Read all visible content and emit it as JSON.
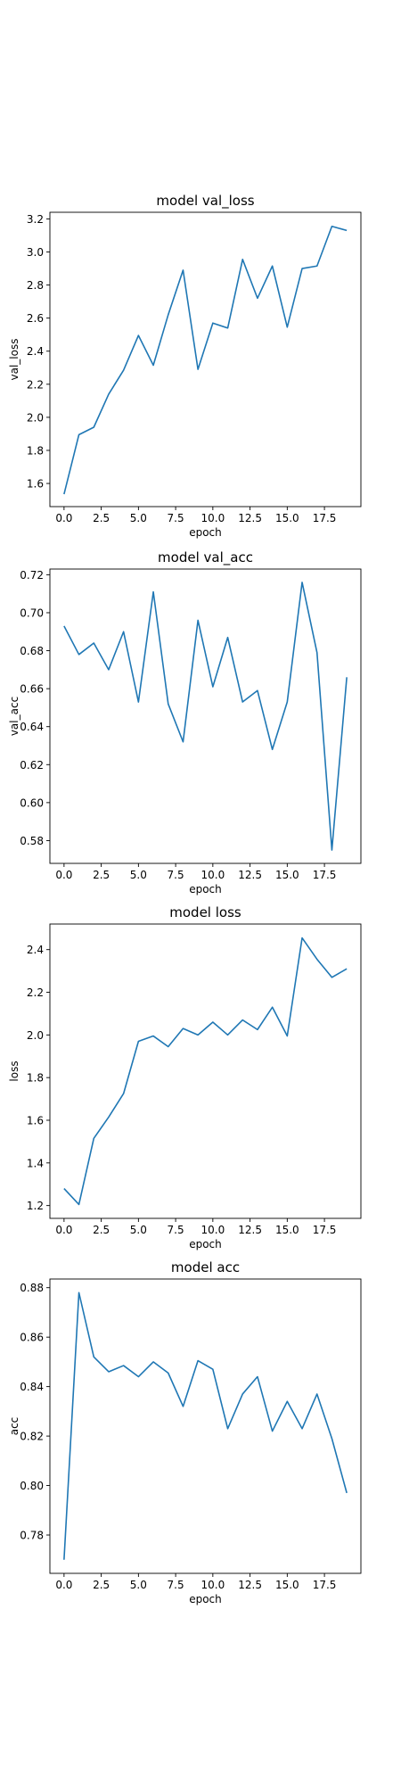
{
  "chart_data": [
    {
      "type": "line",
      "title": "model val_loss",
      "xlabel": "epoch",
      "ylabel": "val_loss",
      "xlim": [
        -0.95,
        19.95
      ],
      "ylim": [
        1.46,
        3.24
      ],
      "xticks": [
        "0.0",
        "2.5",
        "5.0",
        "7.5",
        "10.0",
        "12.5",
        "15.0",
        "17.5"
      ],
      "yticks": [
        "1.6",
        "1.8",
        "2.0",
        "2.2",
        "2.4",
        "2.6",
        "2.8",
        "3.0",
        "3.2"
      ],
      "grid": false,
      "series": [
        {
          "color": "#1f77b4",
          "x": [
            0,
            1,
            2,
            3,
            4,
            5,
            6,
            7,
            8,
            9,
            10,
            11,
            12,
            13,
            14,
            15,
            16,
            17,
            18,
            19
          ],
          "y": [
            1.535,
            1.895,
            1.94,
            2.14,
            2.285,
            2.495,
            2.315,
            2.62,
            2.89,
            2.29,
            2.57,
            2.54,
            2.955,
            2.72,
            2.915,
            2.545,
            2.9,
            2.915,
            3.155,
            3.13
          ]
        }
      ]
    },
    {
      "type": "line",
      "title": "model val_acc",
      "xlabel": "epoch",
      "ylabel": "val_acc",
      "xlim": [
        -0.95,
        19.95
      ],
      "ylim": [
        0.568,
        0.723
      ],
      "xticks": [
        "0.0",
        "2.5",
        "5.0",
        "7.5",
        "10.0",
        "12.5",
        "15.0",
        "17.5"
      ],
      "yticks": [
        "0.58",
        "0.60",
        "0.62",
        "0.64",
        "0.66",
        "0.68",
        "0.70",
        "0.72"
      ],
      "grid": false,
      "series": [
        {
          "color": "#1f77b4",
          "x": [
            0,
            1,
            2,
            3,
            4,
            5,
            6,
            7,
            8,
            9,
            10,
            11,
            12,
            13,
            14,
            15,
            16,
            17,
            18,
            19
          ],
          "y": [
            0.693,
            0.678,
            0.684,
            0.67,
            0.69,
            0.653,
            0.711,
            0.652,
            0.632,
            0.696,
            0.661,
            0.687,
            0.653,
            0.659,
            0.628,
            0.653,
            0.716,
            0.679,
            0.575,
            0.666
          ]
        }
      ]
    },
    {
      "type": "line",
      "title": "model loss",
      "xlabel": "epoch",
      "ylabel": "loss",
      "xlim": [
        -0.95,
        19.95
      ],
      "ylim": [
        1.14,
        2.52
      ],
      "xticks": [
        "0.0",
        "2.5",
        "5.0",
        "7.5",
        "10.0",
        "12.5",
        "15.0",
        "17.5"
      ],
      "yticks": [
        "1.2",
        "1.4",
        "1.6",
        "1.8",
        "2.0",
        "2.2",
        "2.4"
      ],
      "grid": false,
      "series": [
        {
          "color": "#1f77b4",
          "x": [
            0,
            1,
            2,
            3,
            4,
            5,
            6,
            7,
            8,
            9,
            10,
            11,
            12,
            13,
            14,
            15,
            16,
            17,
            18,
            19
          ],
          "y": [
            1.28,
            1.205,
            1.515,
            1.615,
            1.725,
            1.97,
            1.995,
            1.945,
            2.03,
            2.0,
            2.06,
            2.0,
            2.07,
            2.025,
            2.13,
            1.995,
            2.455,
            2.355,
            2.27,
            2.31
          ]
        }
      ]
    },
    {
      "type": "line",
      "title": "model acc",
      "xlabel": "epoch",
      "ylabel": "acc",
      "xlim": [
        -0.95,
        19.95
      ],
      "ylim": [
        0.7645,
        0.8835
      ],
      "xticks": [
        "0.0",
        "2.5",
        "5.0",
        "7.5",
        "10.0",
        "12.5",
        "15.0",
        "17.5"
      ],
      "yticks": [
        "0.78",
        "0.80",
        "0.82",
        "0.84",
        "0.86",
        "0.88"
      ],
      "grid": false,
      "series": [
        {
          "color": "#1f77b4",
          "x": [
            0,
            1,
            2,
            3,
            4,
            5,
            6,
            7,
            8,
            9,
            10,
            11,
            12,
            13,
            14,
            15,
            16,
            17,
            18,
            19
          ],
          "y": [
            0.77,
            0.878,
            0.852,
            0.846,
            0.8485,
            0.844,
            0.85,
            0.8455,
            0.832,
            0.8505,
            0.847,
            0.823,
            0.837,
            0.844,
            0.822,
            0.834,
            0.823,
            0.837,
            0.819,
            0.797
          ]
        }
      ]
    }
  ]
}
